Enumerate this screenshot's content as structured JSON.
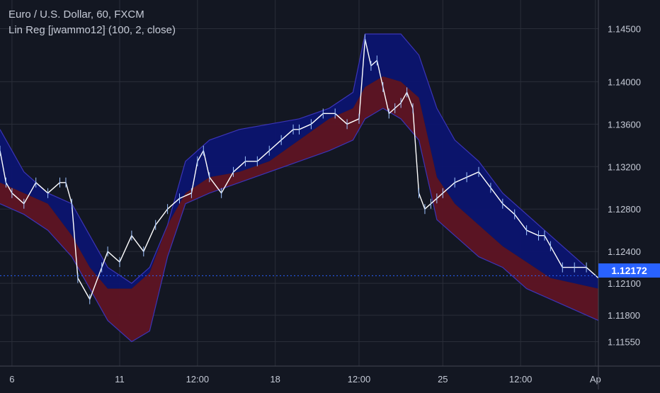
{
  "header": {
    "symbol_line": "Euro / U.S. Dollar, 60, FXCM",
    "indicator_line": "Lin Reg [jwammo12] (100, 2, close)"
  },
  "last_price_label": "1.12172",
  "colors": {
    "background": "#131722",
    "grid": "#2a2e39",
    "axis_text": "#c5cad6",
    "upper_band": "#0b1470",
    "lower_band": "#5e1424",
    "band_edge": "#3b34b8",
    "price_line": "#ffffff",
    "last_price_badge": "#2962ff",
    "last_price_line": "#2962ff"
  },
  "chart_data": {
    "type": "line",
    "y_ticks": [
      "1.14500",
      "1.14000",
      "1.13600",
      "1.13200",
      "1.12800",
      "1.12400",
      "1.12100",
      "1.11800",
      "1.11550"
    ],
    "y_tick_values": [
      1.145,
      1.14,
      1.136,
      1.132,
      1.128,
      1.124,
      1.121,
      1.118,
      1.1155
    ],
    "x_ticks": [
      "6",
      "11",
      "12:00",
      "18",
      "12:00",
      "25",
      "12:00",
      "Ap"
    ],
    "x_tick_positions": [
      0.02,
      0.2,
      0.33,
      0.46,
      0.6,
      0.74,
      0.87,
      0.995
    ],
    "last_price": 1.12172,
    "series": [
      {
        "role": "price",
        "x": [
          0,
          0.01,
          0.02,
          0.04,
          0.06,
          0.08,
          0.1,
          0.11,
          0.12,
          0.13,
          0.15,
          0.17,
          0.18,
          0.2,
          0.22,
          0.24,
          0.26,
          0.28,
          0.3,
          0.32,
          0.33,
          0.34,
          0.35,
          0.37,
          0.39,
          0.41,
          0.43,
          0.45,
          0.47,
          0.49,
          0.5,
          0.52,
          0.54,
          0.56,
          0.58,
          0.6,
          0.61,
          0.62,
          0.63,
          0.64,
          0.65,
          0.66,
          0.67,
          0.68,
          0.69,
          0.7,
          0.71,
          0.72,
          0.73,
          0.74,
          0.76,
          0.78,
          0.8,
          0.82,
          0.84,
          0.86,
          0.88,
          0.9,
          0.91,
          0.92,
          0.94,
          0.96,
          0.98,
          1.0
        ],
        "y": [
          1.1335,
          1.1305,
          1.1295,
          1.1285,
          1.1305,
          1.1295,
          1.1305,
          1.1305,
          1.1285,
          1.1215,
          1.1195,
          1.1225,
          1.124,
          1.123,
          1.1255,
          1.124,
          1.1265,
          1.128,
          1.129,
          1.1295,
          1.1325,
          1.1335,
          1.131,
          1.1295,
          1.1315,
          1.1325,
          1.1325,
          1.1335,
          1.1345,
          1.1355,
          1.1355,
          1.136,
          1.137,
          1.137,
          1.136,
          1.1365,
          1.144,
          1.1415,
          1.142,
          1.1395,
          1.137,
          1.1375,
          1.138,
          1.139,
          1.1375,
          1.1295,
          1.128,
          1.1285,
          1.129,
          1.1295,
          1.1305,
          1.131,
          1.1315,
          1.13,
          1.1285,
          1.1275,
          1.126,
          1.1255,
          1.1255,
          1.1245,
          1.1225,
          1.1225,
          1.1225,
          1.1215
        ]
      },
      {
        "role": "upper-band",
        "x": [
          0,
          0.04,
          0.08,
          0.12,
          0.15,
          0.18,
          0.22,
          0.25,
          0.28,
          0.31,
          0.35,
          0.4,
          0.45,
          0.5,
          0.55,
          0.59,
          0.61,
          0.64,
          0.67,
          0.7,
          0.73,
          0.76,
          0.8,
          0.84,
          0.88,
          0.92,
          0.96,
          1.0
        ],
        "y": [
          1.1355,
          1.1315,
          1.1295,
          1.1285,
          1.1255,
          1.1225,
          1.121,
          1.1225,
          1.1265,
          1.1325,
          1.1345,
          1.1355,
          1.136,
          1.1365,
          1.1375,
          1.139,
          1.1445,
          1.1445,
          1.1445,
          1.1425,
          1.1375,
          1.1345,
          1.1325,
          1.1295,
          1.1275,
          1.1255,
          1.1235,
          1.1215
        ]
      },
      {
        "role": "midline",
        "x": [
          0,
          0.04,
          0.08,
          0.12,
          0.15,
          0.18,
          0.22,
          0.25,
          0.28,
          0.31,
          0.35,
          0.4,
          0.45,
          0.5,
          0.55,
          0.59,
          0.61,
          0.64,
          0.67,
          0.7,
          0.73,
          0.76,
          0.8,
          0.84,
          0.88,
          0.92,
          0.96,
          1.0
        ],
        "y": [
          1.1305,
          1.1295,
          1.1285,
          1.1255,
          1.1225,
          1.1205,
          1.1205,
          1.122,
          1.1265,
          1.1295,
          1.131,
          1.1315,
          1.1325,
          1.1345,
          1.1365,
          1.1375,
          1.1395,
          1.1405,
          1.14,
          1.1385,
          1.131,
          1.1285,
          1.1265,
          1.1245,
          1.123,
          1.1215,
          1.121,
          1.1205
        ]
      },
      {
        "role": "lower-band",
        "x": [
          0,
          0.04,
          0.08,
          0.12,
          0.15,
          0.18,
          0.22,
          0.25,
          0.28,
          0.31,
          0.35,
          0.4,
          0.45,
          0.5,
          0.55,
          0.59,
          0.61,
          0.64,
          0.67,
          0.7,
          0.73,
          0.76,
          0.8,
          0.84,
          0.88,
          0.92,
          0.96,
          1.0
        ],
        "y": [
          1.1285,
          1.1275,
          1.126,
          1.1235,
          1.1205,
          1.1175,
          1.1155,
          1.1165,
          1.1235,
          1.1285,
          1.1295,
          1.1305,
          1.1315,
          1.1325,
          1.1335,
          1.1345,
          1.1365,
          1.1375,
          1.1365,
          1.1345,
          1.127,
          1.1255,
          1.1235,
          1.1225,
          1.1205,
          1.1195,
          1.1185,
          1.1175
        ]
      }
    ]
  }
}
